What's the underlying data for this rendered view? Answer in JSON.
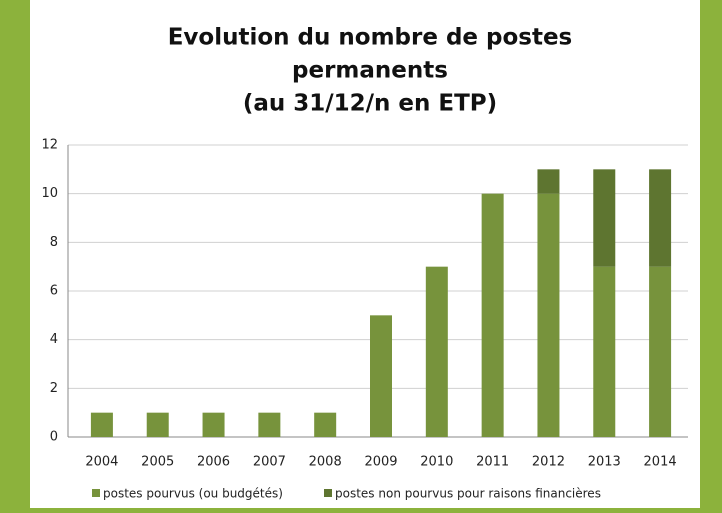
{
  "chart_data": {
    "type": "stacked_bar",
    "title": [
      "Evolution du nombre de postes",
      "permanents",
      "(au 31/12/n en ETP)"
    ],
    "categories": [
      "2004",
      "2005",
      "2006",
      "2007",
      "2008",
      "2009",
      "2010",
      "2011",
      "2012",
      "2013",
      "2014"
    ],
    "series": [
      {
        "name": "postes pourvus (ou budgétés)",
        "color": "#77933c",
        "values": [
          1,
          1,
          1,
          1,
          1,
          5,
          7,
          10,
          10,
          7,
          7
        ]
      },
      {
        "name": "postes non pourvus pour raisons financières",
        "color": "#5e7530",
        "values": [
          0,
          0,
          0,
          0,
          0,
          0,
          0,
          0,
          1,
          4,
          4
        ]
      }
    ],
    "ylim": [
      0,
      12
    ],
    "yticks": [
      0,
      2,
      4,
      6,
      8,
      10,
      12
    ],
    "grid": true
  }
}
